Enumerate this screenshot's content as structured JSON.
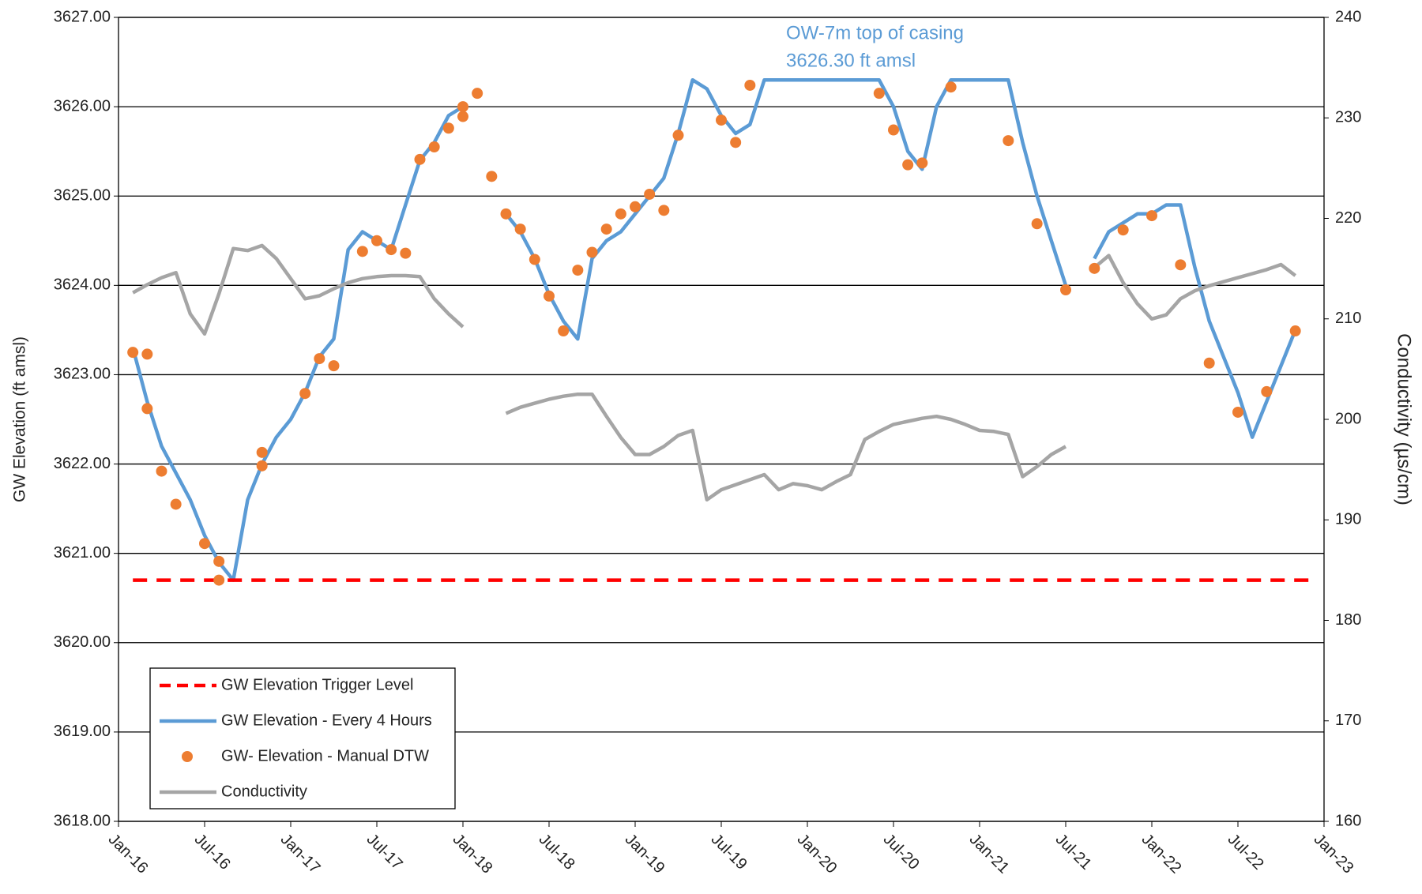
{
  "chart_data": {
    "type": "line",
    "annotation": [
      "OW-7m top of casing",
      "3626.30 ft amsl"
    ],
    "annotation_color": "#5b9bd5",
    "y_label": "GW Elevation (ft amsl)",
    "y2_label": "Conductivity (µs/cm)",
    "xlim": [
      "2016-01",
      "2023-01"
    ],
    "xticks": [
      {
        "value": "2016-01",
        "label": "Jan-16"
      },
      {
        "value": "2016-07",
        "label": "Jul-16"
      },
      {
        "value": "2017-01",
        "label": "Jan-17"
      },
      {
        "value": "2017-07",
        "label": "Jul-17"
      },
      {
        "value": "2018-01",
        "label": "Jan-18"
      },
      {
        "value": "2018-07",
        "label": "Jul-18"
      },
      {
        "value": "2019-01",
        "label": "Jan-19"
      },
      {
        "value": "2019-07",
        "label": "Jul-19"
      },
      {
        "value": "2020-01",
        "label": "Jan-20"
      },
      {
        "value": "2020-07",
        "label": "Jul-20"
      },
      {
        "value": "2021-01",
        "label": "Jan-21"
      },
      {
        "value": "2021-07",
        "label": "Jul-21"
      },
      {
        "value": "2022-01",
        "label": "Jan-22"
      },
      {
        "value": "2022-07",
        "label": "Jul-22"
      },
      {
        "value": "2023-01",
        "label": "Jan-23"
      }
    ],
    "ylim": [
      3618,
      3627
    ],
    "yticks": [
      {
        "value": 3618,
        "label": "3618.00"
      },
      {
        "value": 3619,
        "label": "3619.00"
      },
      {
        "value": 3620,
        "label": "3620.00"
      },
      {
        "value": 3621,
        "label": "3621.00"
      },
      {
        "value": 3622,
        "label": "3622.00"
      },
      {
        "value": 3623,
        "label": "3623.00"
      },
      {
        "value": 3624,
        "label": "3624.00"
      },
      {
        "value": 3625,
        "label": "3625.00"
      },
      {
        "value": 3626,
        "label": "3626.00"
      },
      {
        "value": 3627,
        "label": "3627.00"
      }
    ],
    "y2lim": [
      160,
      240
    ],
    "y2ticks": [
      160,
      170,
      180,
      190,
      200,
      210,
      220,
      230,
      240
    ],
    "grid": true,
    "legend": "lower left",
    "series": [
      {
        "name": "GW Elevation Trigger Level",
        "color": "#ff0000",
        "style": "dashed",
        "x": [
          "2016-02",
          "2022-12"
        ],
        "values": [
          3620.7,
          3620.7
        ]
      },
      {
        "name": "GW Elevation - Every 4 Hours",
        "color": "#5b9bd5",
        "style": "solid",
        "x": [
          "2016-02",
          "2016-03",
          "2016-04",
          "2016-05",
          "2016-06",
          "2016-07",
          "2016-08",
          "2016-09",
          "2016-10",
          "2016-11",
          "2016-12",
          "2017-01",
          "2017-02",
          "2017-03",
          "2017-04",
          "2017-05",
          "2017-06",
          "2017-07",
          "2017-08",
          "2017-09",
          "2017-10",
          "2017-11",
          "2017-12",
          "2018-01",
          "2018-02",
          "2018-03",
          "2018-04",
          "2018-05",
          "2018-06",
          "2018-07",
          "2018-08",
          "2018-09",
          "2018-10",
          "2018-11",
          "2018-12",
          "2019-01",
          "2019-02",
          "2019-03",
          "2019-04",
          "2019-05",
          "2019-06",
          "2019-07",
          "2019-08",
          "2019-09",
          "2019-10",
          "2019-11",
          "2019-12",
          "2020-01",
          "2020-02",
          "2020-03",
          "2020-04",
          "2020-05",
          "2020-06",
          "2020-07",
          "2020-08",
          "2020-09",
          "2020-10",
          "2020-11",
          "2020-12",
          "2021-01",
          "2021-02",
          "2021-03",
          "2021-04",
          "2021-05",
          "2021-06",
          "2021-07",
          "2021-08",
          "2021-09",
          "2021-10",
          "2021-11",
          "2021-12",
          "2022-01",
          "2022-02",
          "2022-03",
          "2022-04",
          "2022-05",
          "2022-06",
          "2022-07",
          "2022-08",
          "2022-09",
          "2022-10",
          "2022-11"
        ],
        "values": [
          3623.3,
          3622.7,
          3622.2,
          3621.9,
          3621.6,
          3621.2,
          3620.9,
          3620.7,
          3621.6,
          3622,
          3622.3,
          3622.5,
          3622.8,
          3623.2,
          3623.4,
          3624.4,
          3624.6,
          3624.5,
          3624.4,
          3624.9,
          3625.4,
          3625.6,
          3625.9,
          3626,
          null,
          null,
          3624.8,
          3624.6,
          3624.3,
          3623.9,
          3623.6,
          3623.4,
          3624.3,
          3624.5,
          3624.6,
          3624.8,
          3625,
          3625.2,
          3625.7,
          3626.3,
          3626.2,
          3625.9,
          3625.7,
          3625.8,
          3626.3,
          3626.3,
          3626.3,
          3626.3,
          3626.3,
          3626.3,
          3626.3,
          3626.3,
          3626.3,
          3626,
          3625.5,
          3625.3,
          3626,
          3626.3,
          3626.3,
          3626.3,
          3626.3,
          3626.3,
          3625.6,
          3625,
          3624.5,
          3624,
          null,
          3624.3,
          3624.6,
          3624.7,
          3624.8,
          3624.8,
          3624.9,
          3624.9,
          3624.2,
          3623.6,
          3623.2,
          3622.8,
          3622.3,
          3622.7,
          3623.1,
          3623.5
        ]
      },
      {
        "name": "GW- Elevation - Manual DTW",
        "color": "#ed7d31",
        "style": "markers",
        "x": [
          "2016-02",
          "2016-03",
          "2016-03",
          "2016-04",
          "2016-05",
          "2016-07",
          "2016-08",
          "2016-08",
          "2016-11",
          "2016-11",
          "2017-02",
          "2017-03",
          "2017-04",
          "2017-06",
          "2017-07",
          "2017-08",
          "2017-09",
          "2017-10",
          "2017-11",
          "2017-12",
          "2018-01",
          "2018-01",
          "2018-02",
          "2018-03",
          "2018-04",
          "2018-05",
          "2018-06",
          "2018-07",
          "2018-08",
          "2018-09",
          "2018-10",
          "2018-11",
          "2018-12",
          "2019-01",
          "2019-02",
          "2019-03",
          "2019-04",
          "2019-07",
          "2019-08",
          "2019-09",
          "2020-06",
          "2020-07",
          "2020-08",
          "2020-09",
          "2020-11",
          "2021-03",
          "2021-05",
          "2021-07",
          "2021-09",
          "2021-11",
          "2022-01",
          "2022-03",
          "2022-05",
          "2022-07",
          "2022-09",
          "2022-11"
        ],
        "values": [
          3623.25,
          3623.23,
          3622.62,
          3621.92,
          3621.55,
          3621.11,
          3620.91,
          3620.7,
          3621.98,
          3622.13,
          3622.79,
          3623.18,
          3623.1,
          3624.38,
          3624.5,
          3624.4,
          3624.36,
          3625.41,
          3625.55,
          3625.76,
          3625.89,
          3626,
          3626.15,
          3625.22,
          3624.8,
          3624.63,
          3624.29,
          3623.88,
          3623.49,
          3624.17,
          3624.37,
          3624.63,
          3624.8,
          3624.88,
          3625.02,
          3624.84,
          3625.68,
          3625.85,
          3625.6,
          3626.24,
          3626.15,
          3625.74,
          3625.35,
          3625.37,
          3626.22,
          3625.62,
          3624.69,
          3623.95,
          3624.19,
          3624.62,
          3624.78,
          3624.23,
          3623.13,
          3622.58,
          3622.81,
          3623.49
        ]
      },
      {
        "name": "Conductivity",
        "color": "#a5a5a5",
        "style": "solid",
        "axis": "y2",
        "x": [
          "2016-02",
          "2016-03",
          "2016-04",
          "2016-05",
          "2016-06",
          "2016-07",
          "2016-08",
          "2016-09",
          "2016-10",
          "2016-11",
          "2016-12",
          "2017-01",
          "2017-02",
          "2017-03",
          "2017-04",
          "2017-05",
          "2017-06",
          "2017-07",
          "2017-08",
          "2017-09",
          "2017-10",
          "2017-11",
          "2017-12",
          "2018-01",
          "2018-02",
          "2018-03",
          "2018-04",
          "2018-05",
          "2018-06",
          "2018-07",
          "2018-08",
          "2018-09",
          "2018-10",
          "2018-11",
          "2018-12",
          "2019-01",
          "2019-02",
          "2019-03",
          "2019-04",
          "2019-05",
          "2019-06",
          "2019-07",
          "2019-08",
          "2019-09",
          "2019-10",
          "2019-11",
          "2019-12",
          "2020-01",
          "2020-02",
          "2020-03",
          "2020-04",
          "2020-05",
          "2020-06",
          "2020-07",
          "2020-08",
          "2020-09",
          "2020-10",
          "2020-11",
          "2020-12",
          "2021-01",
          "2021-02",
          "2021-03",
          "2021-04",
          "2021-05",
          "2021-06",
          "2021-07",
          "2021-08",
          "2021-09",
          "2021-10",
          "2021-11",
          "2021-12",
          "2022-01",
          "2022-02",
          "2022-03",
          "2022-04",
          "2022-05",
          "2022-06",
          "2022-07",
          "2022-08",
          "2022-09",
          "2022-10",
          "2022-11"
        ],
        "values": [
          212.6,
          213.4,
          214.1,
          214.6,
          210.5,
          208.5,
          212.5,
          217,
          216.8,
          217.3,
          216,
          214,
          212,
          212.3,
          213,
          213.6,
          214,
          214.2,
          214.3,
          214.3,
          214.2,
          212,
          210.5,
          209.2,
          null,
          null,
          200.6,
          201.2,
          201.6,
          202,
          202.3,
          202.5,
          202.5,
          200.3,
          198.2,
          196.5,
          196.5,
          197.3,
          198.4,
          198.9,
          192,
          193,
          193.5,
          194,
          194.5,
          193,
          193.6,
          193.4,
          193,
          193.8,
          194.5,
          198,
          198.8,
          199.5,
          199.8,
          200.1,
          200.3,
          200,
          199.5,
          198.9,
          198.8,
          198.5,
          194.3,
          195.3,
          196.5,
          197.3,
          null,
          215.1,
          216.3,
          213.6,
          211.5,
          210,
          210.4,
          212,
          212.8,
          213.3,
          213.7,
          214.1,
          214.5,
          214.9,
          215.4,
          214.3
        ]
      }
    ]
  }
}
